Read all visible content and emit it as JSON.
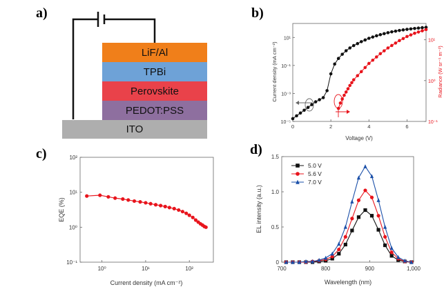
{
  "panel_labels": {
    "a": "a)",
    "b": "b)",
    "c": "c)",
    "d": "d)"
  },
  "device": {
    "layers": [
      {
        "name": "LiF/Al",
        "color": "#f07f1a"
      },
      {
        "name": "TPBi",
        "color": "#6ea2d7"
      },
      {
        "name": "Perovskite",
        "color": "#e9424a"
      },
      {
        "name": "PEDOT:PSS",
        "color": "#8e6f9f"
      },
      {
        "name": "ITO",
        "color": "#aeaeae"
      }
    ]
  },
  "chart_data": [
    {
      "id": "b",
      "type": "line",
      "xlabel": "Voltage (V)",
      "ylabel_left": "Current density (mA cm⁻²)",
      "ylabel_right": "Radiance (W sr⁻¹ m⁻²)",
      "xlim": [
        0,
        7
      ],
      "xticks": [
        "0",
        "2",
        "4",
        "6"
      ],
      "yticks_left": [
        "10⁻⁵",
        "10⁻³",
        "10⁻¹",
        "10¹"
      ],
      "yticks_right": [
        "10⁻¹",
        "10⁰",
        "10¹"
      ],
      "ylim_left_log10": [
        -5,
        2
      ],
      "ylim_right_log10": [
        -1,
        1.4
      ],
      "series": [
        {
          "name": "Current density",
          "axis": "left",
          "color": "#111111",
          "x": [
            0.0,
            0.2,
            0.4,
            0.6,
            0.8,
            1.0,
            1.2,
            1.4,
            1.6,
            1.8,
            2.0,
            2.2,
            2.4,
            2.6,
            2.8,
            3.0,
            3.2,
            3.4,
            3.6,
            3.8,
            4.0,
            4.2,
            4.4,
            4.6,
            4.8,
            5.0,
            5.2,
            5.4,
            5.6,
            5.8,
            6.0,
            6.2,
            6.4,
            6.6,
            6.8,
            7.0
          ],
          "y_log10": [
            -4.8,
            -4.6,
            -4.4,
            -4.2,
            -4.0,
            -3.8,
            -3.6,
            -3.45,
            -3.3,
            -2.8,
            -1.6,
            -0.9,
            -0.5,
            -0.2,
            0.05,
            0.25,
            0.42,
            0.56,
            0.7,
            0.82,
            0.94,
            1.03,
            1.12,
            1.2,
            1.27,
            1.34,
            1.4,
            1.45,
            1.5,
            1.54,
            1.58,
            1.61,
            1.64,
            1.67,
            1.7,
            1.72
          ]
        },
        {
          "name": "Radiance",
          "axis": "right",
          "color": "#e8141c",
          "x": [
            2.4,
            2.5,
            2.6,
            2.7,
            2.8,
            2.9,
            3.0,
            3.1,
            3.2,
            3.4,
            3.6,
            3.8,
            4.0,
            4.2,
            4.4,
            4.6,
            4.8,
            5.0,
            5.2,
            5.4,
            5.6,
            5.8,
            6.0,
            6.2,
            6.4,
            6.6,
            6.8,
            7.0
          ],
          "y_log10": [
            -0.68,
            -0.55,
            -0.45,
            -0.36,
            -0.28,
            -0.2,
            -0.12,
            -0.05,
            0.02,
            0.12,
            0.22,
            0.32,
            0.42,
            0.5,
            0.58,
            0.66,
            0.73,
            0.8,
            0.86,
            0.92,
            0.98,
            1.03,
            1.08,
            1.12,
            1.16,
            1.19,
            1.22,
            1.25
          ]
        }
      ]
    },
    {
      "id": "c",
      "type": "line",
      "xlabel": "Current density (mA cm⁻²)",
      "ylabel": "EQE (%)",
      "xlim_log10": [
        -0.5,
        2.55
      ],
      "ylim_log10": [
        -1,
        2
      ],
      "xticks": [
        "10⁰",
        "10¹",
        "10²"
      ],
      "yticks": [
        "10⁻¹",
        "10⁰",
        "10¹",
        "10²"
      ],
      "series": [
        {
          "name": "EQE",
          "color": "#e8141c",
          "x": [
            0.45,
            0.9,
            1.4,
            2,
            3,
            4,
            5.5,
            7.5,
            10,
            13,
            17,
            22,
            28,
            35,
            45,
            57,
            70,
            85,
            100,
            120,
            140,
            160,
            180,
            200,
            220,
            240
          ],
          "y": [
            7.8,
            8.2,
            7.4,
            6.8,
            6.4,
            6.0,
            5.6,
            5.3,
            5.0,
            4.7,
            4.4,
            4.15,
            3.9,
            3.65,
            3.4,
            3.1,
            2.8,
            2.5,
            2.2,
            1.9,
            1.6,
            1.4,
            1.25,
            1.15,
            1.05,
            1.0
          ]
        }
      ]
    },
    {
      "id": "d",
      "type": "line",
      "xlabel": "Wavelength (nm)",
      "ylabel": "EL intensity (a.u.)",
      "xlim": [
        700,
        1000
      ],
      "ylim": [
        0,
        1.5
      ],
      "xticks": [
        "700",
        "800",
        "900",
        "1,000"
      ],
      "yticks": [
        "0",
        "0.5",
        "1.0",
        "1.5"
      ],
      "series": [
        {
          "name": "5.0 V",
          "color": "#111111",
          "marker": "square",
          "x": [
            710,
            725,
            740,
            755,
            770,
            785,
            800,
            815,
            830,
            845,
            860,
            875,
            890,
            905,
            920,
            935,
            950,
            965,
            980,
            995
          ],
          "y": [
            0.0,
            0.0,
            0.0,
            0.0,
            0.0,
            0.01,
            0.02,
            0.05,
            0.12,
            0.25,
            0.45,
            0.64,
            0.74,
            0.66,
            0.46,
            0.24,
            0.09,
            0.03,
            0.01,
            0.0
          ]
        },
        {
          "name": "5.6 V",
          "color": "#e8141c",
          "marker": "circle",
          "x": [
            710,
            725,
            740,
            755,
            770,
            785,
            800,
            815,
            830,
            845,
            860,
            875,
            890,
            905,
            920,
            935,
            950,
            965,
            980,
            995
          ],
          "y": [
            0.0,
            0.0,
            0.0,
            0.0,
            0.01,
            0.02,
            0.04,
            0.08,
            0.18,
            0.36,
            0.62,
            0.88,
            1.02,
            0.92,
            0.66,
            0.36,
            0.14,
            0.05,
            0.01,
            0.0
          ]
        },
        {
          "name": "7.0 V",
          "color": "#1a4fa8",
          "marker": "triangle",
          "x": [
            710,
            725,
            740,
            755,
            770,
            785,
            800,
            815,
            830,
            845,
            860,
            875,
            890,
            905,
            920,
            935,
            950,
            965,
            980,
            995
          ],
          "y": [
            0.0,
            0.0,
            0.0,
            0.01,
            0.01,
            0.03,
            0.06,
            0.12,
            0.26,
            0.5,
            0.86,
            1.2,
            1.36,
            1.22,
            0.88,
            0.5,
            0.2,
            0.07,
            0.02,
            0.0
          ]
        }
      ]
    }
  ]
}
